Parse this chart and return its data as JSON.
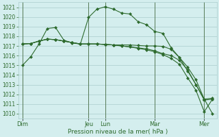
{
  "title": "",
  "xlabel": "Pression niveau de la mer( hPa )",
  "bg_color": "#d4eeee",
  "grid_color": "#aacccc",
  "line_color": "#2d6a2d",
  "ylim": [
    1009.5,
    1021.5
  ],
  "yticks": [
    1010,
    1011,
    1012,
    1013,
    1014,
    1015,
    1016,
    1017,
    1018,
    1019,
    1020,
    1021
  ],
  "day_labels": [
    "Dim",
    "Jeu",
    "Lun",
    "Mar",
    "Mer"
  ],
  "day_x": [
    0,
    8,
    10,
    16,
    22
  ],
  "xlim": [
    -0.5,
    23.5
  ],
  "series": [
    [
      1015.0,
      1015.9,
      1017.2,
      1018.8,
      1018.9,
      1017.6,
      1017.3,
      1017.2,
      1019.95,
      1020.8,
      1021.05,
      1020.8,
      1020.4,
      1020.3,
      1019.5,
      1019.2,
      1018.5,
      1018.3,
      1016.8,
      1015.8,
      1014.4,
      1013.0,
      1011.4,
      1011.5
    ],
    [
      1017.2,
      1017.25,
      1017.5,
      1017.7,
      1017.65,
      1017.5,
      1017.35,
      1017.2,
      1017.2,
      1017.2,
      1017.15,
      1017.1,
      1017.1,
      1017.1,
      1017.05,
      1017.0,
      1017.0,
      1016.95,
      1016.65,
      1015.8,
      1014.8,
      1013.5,
      1011.5,
      1011.6
    ],
    [
      1017.2,
      1017.25,
      1017.5,
      1017.7,
      1017.65,
      1017.5,
      1017.35,
      1017.2,
      1017.2,
      1017.2,
      1017.15,
      1017.1,
      1017.0,
      1016.9,
      1016.8,
      1016.7,
      1016.5,
      1016.2,
      1016.0,
      1015.5,
      1014.5,
      1013.0,
      1011.5,
      1010.0
    ],
    [
      1017.2,
      1017.25,
      1017.5,
      1017.7,
      1017.65,
      1017.5,
      1017.35,
      1017.2,
      1017.2,
      1017.2,
      1017.15,
      1017.1,
      1017.0,
      1016.9,
      1016.75,
      1016.6,
      1016.4,
      1016.1,
      1015.7,
      1015.1,
      1013.7,
      1012.4,
      1010.2,
      1011.5
    ]
  ],
  "marker_series": [
    0,
    1,
    2,
    3
  ],
  "linewidth": 0.8,
  "markersize": 2.2,
  "tick_fontsize": 5.5,
  "xlabel_fontsize": 6.5,
  "xtick_fontsize": 6.0
}
